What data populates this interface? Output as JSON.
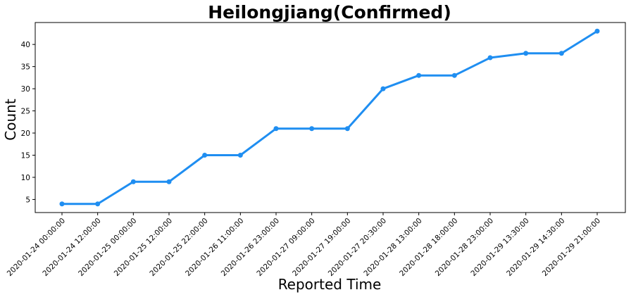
{
  "chart_data": {
    "type": "line",
    "title": "Heilongjiang(Confirmed)",
    "xlabel": "Reported Time",
    "ylabel": "Count",
    "categories": [
      "2020-01-24 00:00:00",
      "2020-01-24 12:00:00",
      "2020-01-25 00:00:00",
      "2020-01-25 12:00:00",
      "2020-01-25 22:00:00",
      "2020-01-26 11:00:00",
      "2020-01-26 23:00:00",
      "2020-01-27 09:00:00",
      "2020-01-27 19:00:00",
      "2020-01-27 20:30:00",
      "2020-01-28 13:00:00",
      "2020-01-28 18:00:00",
      "2020-01-28 23:00:00",
      "2020-01-29 13:30:00",
      "2020-01-29 14:30:00",
      "2020-01-29 21:00:00"
    ],
    "values": [
      4,
      4,
      9,
      9,
      15,
      15,
      21,
      21,
      21,
      30,
      33,
      33,
      37,
      38,
      38,
      43
    ],
    "ylim": [
      2.05,
      44.95
    ],
    "yticks": [
      5,
      10,
      15,
      20,
      25,
      30,
      35,
      40
    ],
    "color": "#1f8ef1",
    "grid": false,
    "legend": "none"
  }
}
